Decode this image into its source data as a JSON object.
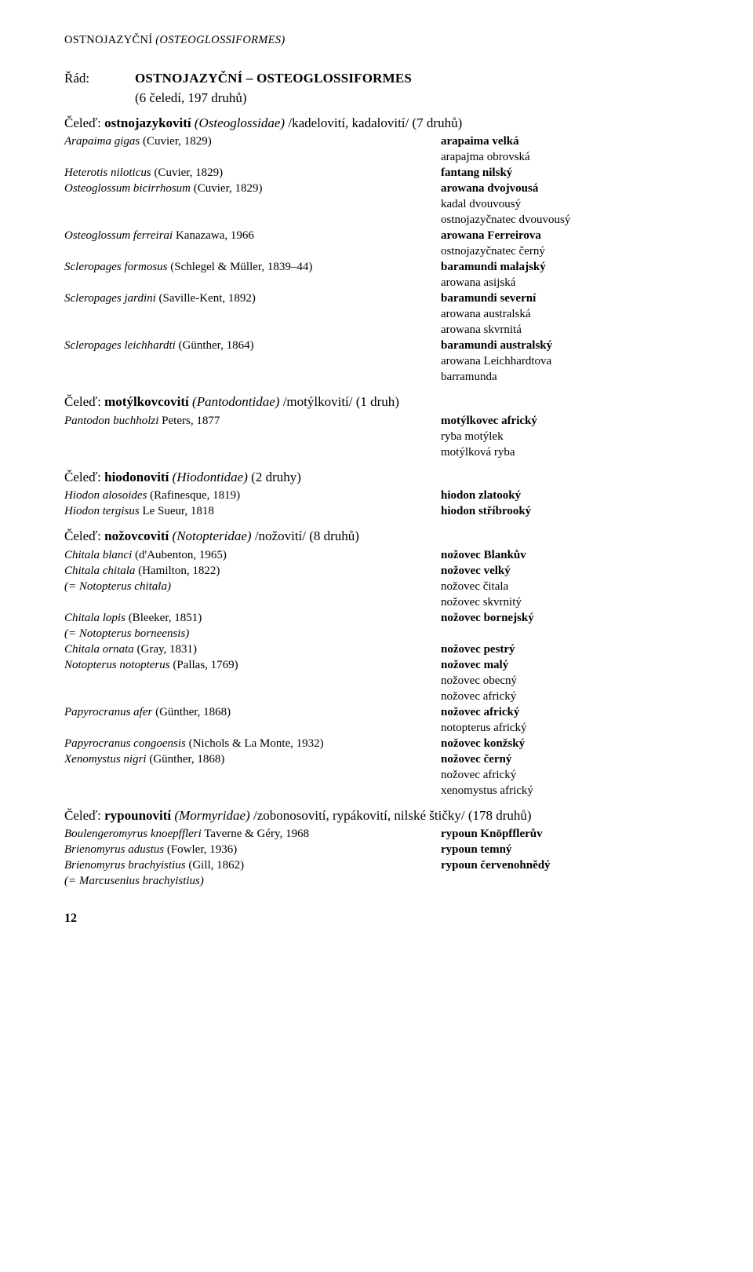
{
  "header": "OSTNOJAZYČNÍ",
  "header_ital": "(OSTEOGLOSSIFORMES)",
  "order_label": "Řád:",
  "order_name": "OSTNOJAZYČNÍ – OSTEOGLOSSIFORMES",
  "order_sub": "(6 čeledí, 197 druhů)",
  "fam1": {
    "prefix": "Čeleď: ",
    "name": "ostnojazykovití",
    "ital": " (Osteoglossidae) ",
    "rest": "/kadelovití, kadalovití/ (7 druhů)"
  },
  "e1_l": "Arapaima gigas",
  "e1_a": " (Cuvier, 1829)",
  "e1_r": "arapaima velká",
  "e1_r2": "arapajma obrovská",
  "e2_l": "Heterotis niloticus",
  "e2_a": " (Cuvier, 1829)",
  "e2_r": "fantang nilský",
  "e3_l": "Osteoglossum bicirrhosum",
  "e3_a": " (Cuvier, 1829)",
  "e3_r": "arowana dvojvousá",
  "e3_r2": "kadal dvouvousý",
  "e3_r3": "ostnojazyčnatec dvouvousý",
  "e4_l": "Osteoglossum ferreirai",
  "e4_a": " Kanazawa, 1966",
  "e4_r": "arowana Ferreirova",
  "e4_r2": "ostnojazyčnatec černý",
  "e5_l": "Scleropages formosus",
  "e5_a": " (Schlegel & Müller, 1839–44)",
  "e5_r": "baramundi malajský",
  "e5_r2": "arowana asijská",
  "e6_l": "Scleropages jardini",
  "e6_a": " (Saville-Kent, 1892)",
  "e6_r": "baramundi severní",
  "e6_r2": "arowana australská",
  "e6_r3": "arowana skvrnitá",
  "e7_l": "Scleropages leichhardti",
  "e7_a": " (Günther, 1864)",
  "e7_r": "baramundi australský",
  "e7_r2": "arowana Leichhardtova",
  "e7_r3": "barramunda",
  "fam2": {
    "prefix": "Čeleď: ",
    "name": "motýlkovcovití",
    "ital": " (Pantodontidae) ",
    "rest": "/motýlkovití/ (1 druh)"
  },
  "p1_l": "Pantodon buchholzi",
  "p1_a": " Peters, 1877",
  "p1_r": "motýlkovec africký",
  "p1_r2": "ryba motýlek",
  "p1_r3": "motýlková ryba",
  "fam3": {
    "prefix": "Čeleď: ",
    "name": "hiodonovití",
    "ital": " (Hiodontidae) ",
    "rest": "(2 druhy)"
  },
  "h1_l": "Hiodon alosoides",
  "h1_a": " (Rafinesque, 1819)",
  "h1_r": "hiodon zlatooký",
  "h2_l": "Hiodon tergisus",
  "h2_a": " Le Sueur, 1818",
  "h2_r": "hiodon stříbrooký",
  "fam4": {
    "prefix": "Čeleď: ",
    "name": "nožovcovití",
    "ital": " (Notopteridae) ",
    "rest": "/nožovití/ (8 druhů)"
  },
  "n1_l": "Chitala blanci",
  "n1_a": " (d'Aubenton, 1965)",
  "n1_r": "nožovec Blankův",
  "n2_l": "Chitala chitala",
  "n2_a": " (Hamilton, 1822)",
  "n2_r": "nožovec velký",
  "n2b_l": "(= Notopterus chitala)",
  "n2b_r": "nožovec čitala",
  "n2_r2": "nožovec skvrnitý",
  "n3_l": "Chitala lopis",
  "n3_a": " (Bleeker, 1851)",
  "n3_r": "nožovec bornejský",
  "n3b_l": "(= Notopterus borneensis)",
  "n4_l": "Chitala ornata",
  "n4_a": " (Gray, 1831)",
  "n4_r": "nožovec pestrý",
  "n5_l": "Notopterus notopterus",
  "n5_a": " (Pallas, 1769)",
  "n5_r": "nožovec malý",
  "n5_r2": "nožovec obecný",
  "n5_r3": "nožovec africký",
  "n6_l": "Papyrocranus afer",
  "n6_a": " (Günther, 1868)",
  "n6_r": "nožovec africký",
  "n6_r2": "notopterus africký",
  "n7_l": "Papyrocranus congoensis",
  "n7_a": " (Nichols & La Monte, 1932)",
  "n7_r": "nožovec konžský",
  "n8_l": "Xenomystus nigri",
  "n8_a": " (Günther, 1868)",
  "n8_r": "nožovec černý",
  "n8_r2": "nožovec africký",
  "n8_r3": "xenomystus africký",
  "fam5": {
    "prefix": "Čeleď: ",
    "name": "rypounovití",
    "ital": " (Mormyridae) ",
    "rest": "/zobonosovití, rypákovití, nilské štičky/ (178 druhů)"
  },
  "m1_l": "Boulengeromyrus knoepffleri",
  "m1_a": " Taverne & Géry, 1968",
  "m1_r": "rypoun Knöpfflerův",
  "m2_l": "Brienomyrus adustus",
  "m2_a": " (Fowler, 1936)",
  "m2_r": "rypoun temný",
  "m3_l": "Brienomyrus brachyistius",
  "m3_a": " (Gill, 1862)",
  "m3_r": "rypoun červenohnědý",
  "m3b_l": "(= Marcusenius brachyistius)",
  "pagenum": "12"
}
